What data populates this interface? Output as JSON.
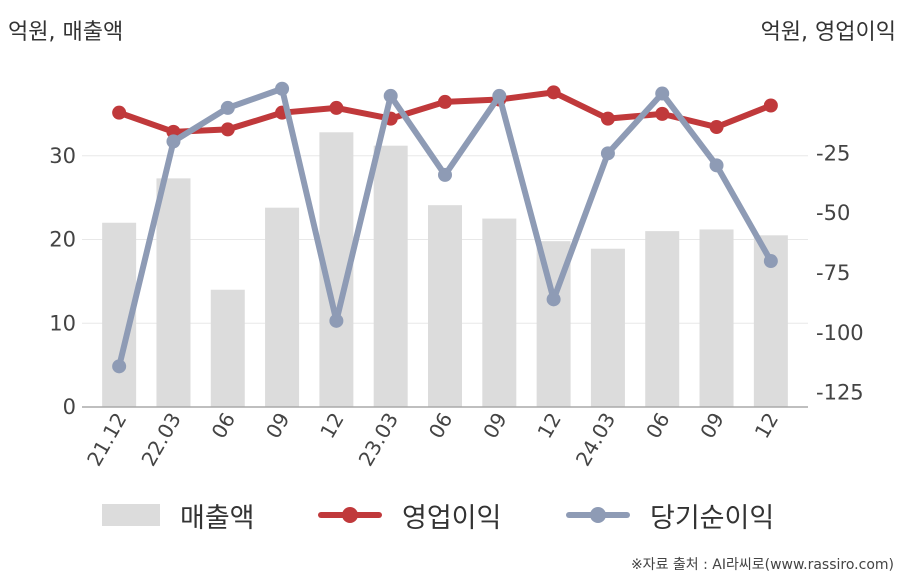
{
  "unit_left": "억원, 매출액",
  "unit_right": "억원, 영업이익",
  "source": "※자료 출처 : AI라씨로(www.rassiro.com)",
  "colors": {
    "revenue": "#dcdcdc",
    "operating": "#c0393b",
    "net": "#8e9bb5",
    "grid": "#e8e8e8",
    "axis": "#aaaaaa"
  },
  "legend": {
    "revenue": "매출액",
    "operating": "영업이익",
    "net": "당기순이익"
  },
  "chart_data": {
    "type": "bar+line",
    "categories": [
      "21.12",
      "22.03",
      "06",
      "09",
      "12",
      "23.03",
      "06",
      "09",
      "12",
      "24.03",
      "06",
      "09",
      "12"
    ],
    "left_axis": {
      "ylim": [
        0,
        40
      ],
      "ticks": [
        0,
        10,
        20,
        30
      ]
    },
    "right_axis": {
      "ylim": [
        -131,
        9
      ],
      "ticks": [
        -125,
        -100,
        -75,
        -50,
        -25
      ]
    },
    "series": [
      {
        "name": "매출액",
        "type": "bar",
        "axis": "left",
        "values": [
          22,
          27.3,
          14,
          23.8,
          32.8,
          31.2,
          24.1,
          22.5,
          19.8,
          18.9,
          21,
          21.2,
          20.5
        ]
      },
      {
        "name": "영업이익",
        "type": "line",
        "axis": "right",
        "values": [
          -8,
          -16,
          -15,
          -8,
          -6,
          -10.5,
          -3.5,
          -2.5,
          0.5,
          -10.5,
          -8.5,
          -14,
          -5
        ]
      },
      {
        "name": "당기순이익",
        "type": "line",
        "axis": "right",
        "values": [
          -114,
          -20,
          -6,
          2,
          -95,
          -1,
          -34,
          -1,
          -86,
          -25,
          0,
          -30,
          -70
        ]
      }
    ]
  }
}
